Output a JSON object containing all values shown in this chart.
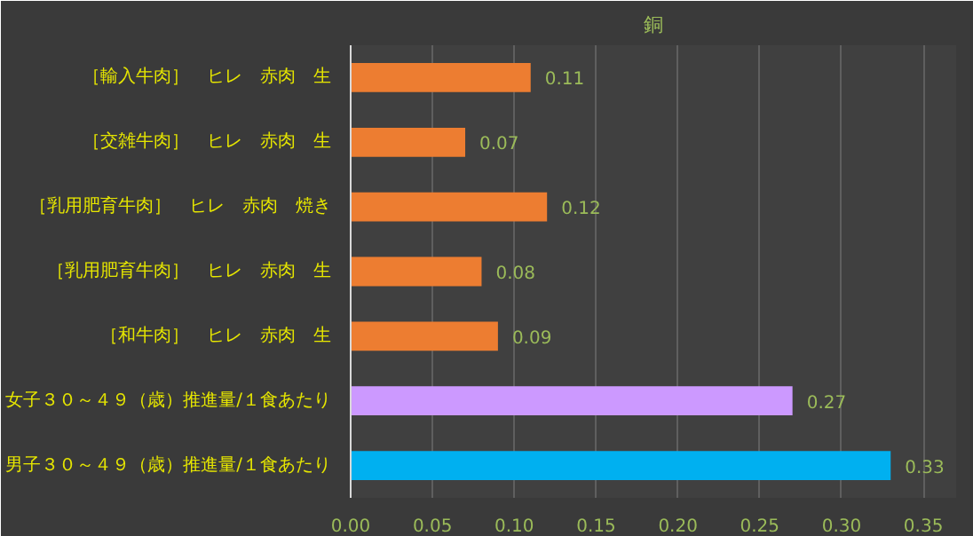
{
  "chart_data": {
    "type": "bar",
    "orientation": "horizontal",
    "title": "銅",
    "categories": [
      "［輸入牛肉］　ヒレ　赤肉　生",
      "［交雑牛肉］　ヒレ　赤肉　生",
      "［乳用肥育牛肉］　ヒレ　赤肉　焼き",
      "［乳用肥育牛肉］　ヒレ　赤肉　生",
      "［和牛肉］　ヒレ　赤肉　生",
      "女子３０～４９（歳）推進量/１食あたり",
      "男子３０～４９（歳）推進量/１食あたり"
    ],
    "values": [
      0.11,
      0.07,
      0.12,
      0.08,
      0.09,
      0.27,
      0.33
    ],
    "colors": [
      "#ed7d31",
      "#ed7d31",
      "#ed7d31",
      "#ed7d31",
      "#ed7d31",
      "#cc99ff",
      "#00b0f0"
    ],
    "xlim": [
      0,
      0.37
    ],
    "xticks": [
      {
        "value": 0,
        "label": "0.00"
      },
      {
        "value": 0.05,
        "label": "0.05"
      },
      {
        "value": 0.1,
        "label": "0.10"
      },
      {
        "value": 0.15,
        "label": "0.15"
      },
      {
        "value": 0.2,
        "label": "0.20"
      },
      {
        "value": 0.25,
        "label": "0.25"
      },
      {
        "value": 0.3,
        "label": "0.30"
      },
      {
        "value": 0.35,
        "label": "0.35"
      }
    ],
    "grid": "x",
    "data_labels": true
  }
}
